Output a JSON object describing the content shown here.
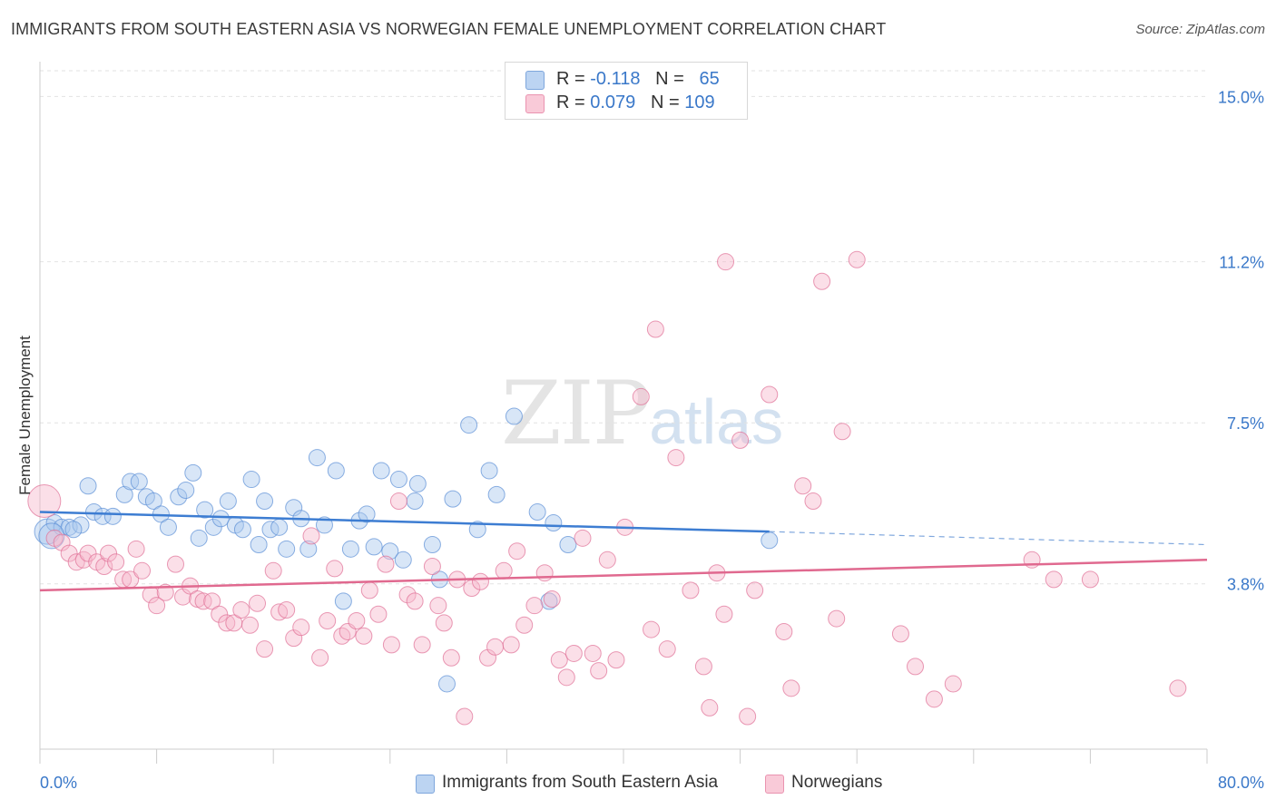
{
  "header": {
    "title": "IMMIGRANTS FROM SOUTH EASTERN ASIA VS NORWEGIAN FEMALE UNEMPLOYMENT CORRELATION CHART",
    "source": "Source: ZipAtlas.com"
  },
  "watermark": {
    "zip": "ZIP",
    "atlas": "atlas"
  },
  "legend": {
    "rows": [
      {
        "r_label": "R = ",
        "r_value": "-0.118",
        "n_label": "N = ",
        "n_value": "65",
        "color": "#a9c8ee"
      },
      {
        "r_label": "R = ",
        "r_value": "0.079",
        "n_label": "N = ",
        "n_value": "109",
        "color": "#f6b9cc"
      }
    ]
  },
  "chart_data": {
    "type": "scatter",
    "title": "IMMIGRANTS FROM SOUTH EASTERN ASIA VS NORWEGIAN FEMALE UNEMPLOYMENT CORRELATION CHART",
    "xlabel": "",
    "ylabel": "Female Unemployment",
    "xlim": [
      0,
      80
    ],
    "ylim": [
      0,
      15.8
    ],
    "x_tick_labels": [
      "0.0%",
      "80.0%"
    ],
    "y_ticks": [
      3.8,
      7.5,
      11.2,
      15.0
    ],
    "y_tick_labels": [
      "3.8%",
      "7.5%",
      "11.2%",
      "15.0%"
    ],
    "grid": "horizontal dashed",
    "legend_position": "top-center",
    "series": [
      {
        "name": "Immigrants from South Eastern Asia",
        "color": "#5b8fd6",
        "fill": "#a9c8ee",
        "trend": {
          "x": [
            0,
            50
          ],
          "y": [
            5.45,
            5.0
          ],
          "dashed_to": [
            80,
            4.7
          ]
        },
        "points": [
          [
            0.5,
            5.0
          ],
          [
            1.0,
            5.2
          ],
          [
            1.5,
            5.1
          ],
          [
            2.0,
            5.1
          ],
          [
            2.8,
            5.15
          ],
          [
            3.3,
            6.05
          ],
          [
            3.7,
            5.45
          ],
          [
            4.3,
            5.35
          ],
          [
            5.0,
            5.35
          ],
          [
            5.8,
            5.85
          ],
          [
            6.2,
            6.15
          ],
          [
            6.8,
            6.15
          ],
          [
            7.3,
            5.8
          ],
          [
            7.8,
            5.7
          ],
          [
            8.3,
            5.4
          ],
          [
            8.8,
            5.1
          ],
          [
            9.5,
            5.8
          ],
          [
            10.0,
            5.95
          ],
          [
            10.5,
            6.35
          ],
          [
            10.9,
            4.85
          ],
          [
            11.3,
            5.5
          ],
          [
            11.9,
            5.1
          ],
          [
            12.4,
            5.3
          ],
          [
            12.9,
            5.7
          ],
          [
            13.4,
            5.15
          ],
          [
            13.9,
            5.05
          ],
          [
            14.5,
            6.2
          ],
          [
            15.0,
            4.7
          ],
          [
            15.4,
            5.7
          ],
          [
            15.8,
            5.05
          ],
          [
            16.4,
            5.1
          ],
          [
            16.9,
            4.6
          ],
          [
            17.4,
            5.55
          ],
          [
            17.9,
            5.3
          ],
          [
            18.4,
            4.6
          ],
          [
            19.0,
            6.7
          ],
          [
            19.5,
            5.15
          ],
          [
            20.3,
            6.4
          ],
          [
            20.8,
            3.4
          ],
          [
            21.3,
            4.6
          ],
          [
            21.9,
            5.25
          ],
          [
            22.4,
            5.4
          ],
          [
            22.9,
            4.65
          ],
          [
            23.4,
            6.4
          ],
          [
            24.0,
            4.55
          ],
          [
            24.6,
            6.2
          ],
          [
            24.9,
            4.35
          ],
          [
            25.7,
            5.7
          ],
          [
            25.9,
            6.1
          ],
          [
            26.9,
            4.7
          ],
          [
            27.4,
            3.9
          ],
          [
            27.9,
            1.5
          ],
          [
            28.3,
            5.75
          ],
          [
            29.4,
            7.45
          ],
          [
            30.0,
            5.05
          ],
          [
            30.8,
            6.4
          ],
          [
            31.3,
            5.85
          ],
          [
            32.5,
            7.65
          ],
          [
            34.1,
            5.45
          ],
          [
            34.9,
            3.4
          ],
          [
            35.2,
            5.2
          ],
          [
            36.2,
            4.7
          ],
          [
            50.0,
            4.8
          ],
          [
            0.8,
            4.9
          ],
          [
            2.3,
            5.05
          ]
        ]
      },
      {
        "name": "Norwegians",
        "color": "#e06f96",
        "fill": "#f6b9cc",
        "trend": {
          "x": [
            0,
            80
          ],
          "y": [
            3.65,
            4.35
          ]
        },
        "points": [
          [
            0.3,
            5.7
          ],
          [
            1.0,
            4.85
          ],
          [
            1.5,
            4.75
          ],
          [
            2.0,
            4.5
          ],
          [
            2.5,
            4.3
          ],
          [
            3.0,
            4.35
          ],
          [
            3.3,
            4.5
          ],
          [
            3.9,
            4.3
          ],
          [
            4.4,
            4.2
          ],
          [
            4.7,
            4.5
          ],
          [
            5.2,
            4.3
          ],
          [
            5.7,
            3.9
          ],
          [
            6.2,
            3.9
          ],
          [
            6.6,
            4.6
          ],
          [
            7.0,
            4.1
          ],
          [
            7.6,
            3.55
          ],
          [
            8.0,
            3.3
          ],
          [
            8.6,
            3.6
          ],
          [
            9.3,
            4.25
          ],
          [
            9.8,
            3.5
          ],
          [
            10.3,
            3.75
          ],
          [
            10.8,
            3.45
          ],
          [
            11.2,
            3.4
          ],
          [
            11.8,
            3.4
          ],
          [
            12.3,
            3.1
          ],
          [
            12.8,
            2.9
          ],
          [
            13.3,
            2.9
          ],
          [
            13.8,
            3.2
          ],
          [
            14.4,
            2.85
          ],
          [
            14.9,
            3.35
          ],
          [
            15.4,
            2.3
          ],
          [
            16.0,
            4.1
          ],
          [
            16.4,
            3.15
          ],
          [
            16.9,
            3.2
          ],
          [
            17.4,
            2.55
          ],
          [
            17.9,
            2.8
          ],
          [
            18.6,
            4.9
          ],
          [
            19.2,
            2.1
          ],
          [
            19.7,
            2.95
          ],
          [
            20.2,
            4.15
          ],
          [
            20.7,
            2.6
          ],
          [
            21.1,
            2.7
          ],
          [
            21.7,
            2.95
          ],
          [
            22.2,
            2.6
          ],
          [
            22.6,
            3.65
          ],
          [
            23.2,
            3.1
          ],
          [
            23.7,
            4.25
          ],
          [
            24.1,
            2.4
          ],
          [
            24.6,
            5.7
          ],
          [
            25.2,
            3.55
          ],
          [
            25.7,
            3.4
          ],
          [
            26.2,
            2.4
          ],
          [
            26.9,
            4.2
          ],
          [
            27.3,
            3.3
          ],
          [
            27.7,
            2.9
          ],
          [
            28.2,
            2.1
          ],
          [
            28.6,
            3.9
          ],
          [
            29.1,
            0.75
          ],
          [
            29.6,
            3.7
          ],
          [
            30.2,
            3.85
          ],
          [
            30.7,
            2.1
          ],
          [
            31.2,
            2.35
          ],
          [
            31.8,
            4.1
          ],
          [
            32.3,
            2.4
          ],
          [
            32.7,
            4.55
          ],
          [
            33.2,
            2.85
          ],
          [
            33.9,
            3.3
          ],
          [
            34.6,
            4.05
          ],
          [
            35.1,
            3.45
          ],
          [
            35.6,
            2.05
          ],
          [
            36.1,
            1.65
          ],
          [
            36.6,
            2.2
          ],
          [
            37.2,
            4.85
          ],
          [
            37.9,
            2.2
          ],
          [
            38.3,
            1.8
          ],
          [
            38.9,
            4.35
          ],
          [
            39.5,
            2.05
          ],
          [
            40.1,
            5.1
          ],
          [
            41.2,
            8.1
          ],
          [
            41.9,
            2.75
          ],
          [
            42.2,
            9.65
          ],
          [
            43.0,
            2.3
          ],
          [
            43.6,
            6.7
          ],
          [
            44.6,
            3.65
          ],
          [
            45.5,
            1.9
          ],
          [
            45.9,
            0.95
          ],
          [
            46.4,
            4.05
          ],
          [
            46.9,
            3.1
          ],
          [
            47.0,
            11.2
          ],
          [
            48.0,
            7.1
          ],
          [
            48.5,
            0.75
          ],
          [
            49.0,
            3.65
          ],
          [
            50.0,
            8.15
          ],
          [
            51.0,
            2.7
          ],
          [
            51.5,
            1.4
          ],
          [
            52.3,
            6.05
          ],
          [
            53.0,
            5.7
          ],
          [
            53.6,
            10.75
          ],
          [
            54.6,
            3.0
          ],
          [
            55.0,
            7.3
          ],
          [
            56.0,
            11.25
          ],
          [
            59.0,
            2.65
          ],
          [
            60.0,
            1.9
          ],
          [
            61.3,
            1.15
          ],
          [
            62.6,
            1.5
          ],
          [
            68.0,
            4.35
          ],
          [
            69.5,
            3.9
          ],
          [
            72.0,
            3.9
          ],
          [
            78.0,
            1.4
          ]
        ]
      }
    ]
  }
}
